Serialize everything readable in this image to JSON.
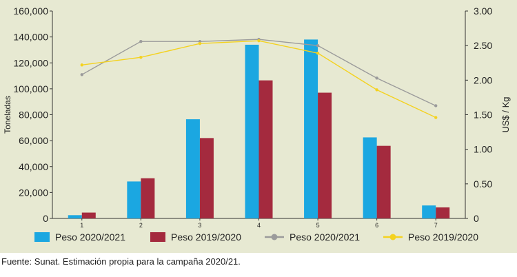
{
  "chart_data": {
    "type": "bar",
    "categories": [
      "1",
      "2",
      "3",
      "4",
      "5",
      "6",
      "7"
    ],
    "y_left": {
      "label": "Toneladas",
      "range": [
        0,
        160000
      ],
      "ticks": [
        "0",
        "20,000",
        "40,000",
        "60,000",
        "80,000",
        "100,000",
        "120,000",
        "140,000",
        "160,000"
      ]
    },
    "y_right": {
      "label": "US$ / Kg",
      "range": [
        0,
        3.0
      ],
      "ticks": [
        "0",
        "0.50",
        "1.00",
        "1.50",
        "2.00",
        "2.50",
        "3.00"
      ]
    },
    "bar_series": [
      {
        "name": "Peso 2020/2021",
        "color": "#1ba7e1",
        "values": [
          2500,
          28500,
          76500,
          134000,
          138000,
          62500,
          10000
        ]
      },
      {
        "name": "Peso 2019/2020",
        "color": "#a42a3e",
        "values": [
          4500,
          31000,
          62000,
          106500,
          97000,
          56000,
          8500
        ]
      }
    ],
    "line_series": [
      {
        "name": "Peso 2020/2021",
        "color": "#9b9b9b",
        "axis": "right",
        "values": [
          2.08,
          2.56,
          2.56,
          2.59,
          2.5,
          2.03,
          1.63
        ]
      },
      {
        "name": "Peso 2019/2020",
        "color": "#f4d21f",
        "axis": "right",
        "values": [
          2.22,
          2.33,
          2.53,
          2.57,
          2.39,
          1.86,
          1.46
        ]
      }
    ],
    "legend_position": "bottom",
    "grid": false
  },
  "footer": {
    "source": "Fuente: Sunat. Estimación propia para la campaña 2020/21."
  }
}
